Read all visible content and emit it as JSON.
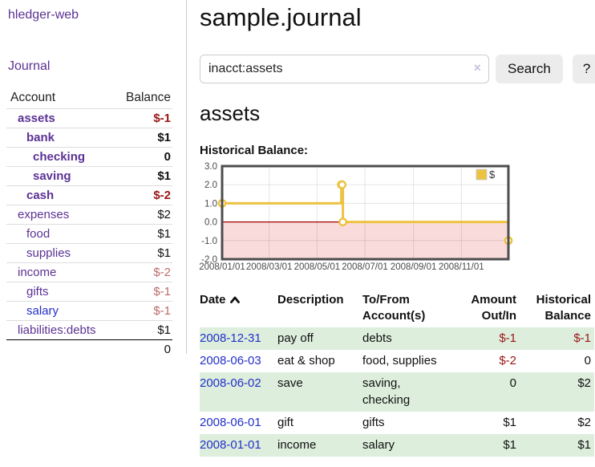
{
  "app": {
    "title": "hledger-web"
  },
  "sidebar": {
    "journal_link": "Journal",
    "accounts": {
      "headers": [
        "Account",
        "Balance"
      ],
      "rows": [
        {
          "account": "assets",
          "balance": "$-1",
          "indent": 1,
          "bold": true,
          "link": "purple",
          "tone": "neg"
        },
        {
          "account": "bank",
          "balance": "$1",
          "indent": 2,
          "bold": true,
          "link": "purple",
          "tone": "pos"
        },
        {
          "account": "checking",
          "balance": "0",
          "indent": 3,
          "bold": true,
          "link": "purple",
          "tone": "pos"
        },
        {
          "account": "saving",
          "balance": "$1",
          "indent": 3,
          "bold": true,
          "link": "purple",
          "tone": "pos"
        },
        {
          "account": "cash",
          "balance": "$-2",
          "indent": 2,
          "bold": true,
          "link": "purple",
          "tone": "neg"
        },
        {
          "account": "expenses",
          "balance": "$2",
          "indent": 1,
          "bold": false,
          "link": "purple",
          "tone": "pos"
        },
        {
          "account": "food",
          "balance": "$1",
          "indent": 2,
          "bold": false,
          "link": "purple",
          "tone": "pos"
        },
        {
          "account": "supplies",
          "balance": "$1",
          "indent": 2,
          "bold": false,
          "link": "purple",
          "tone": "pos"
        },
        {
          "account": "income",
          "balance": "$-2",
          "indent": 1,
          "bold": false,
          "link": "purple",
          "tone": "neg-soft"
        },
        {
          "account": "gifts",
          "balance": "$-1",
          "indent": 2,
          "bold": false,
          "link": "purple",
          "tone": "neg-soft"
        },
        {
          "account": "salary",
          "balance": "$-1",
          "indent": 2,
          "bold": false,
          "link": "blue",
          "tone": "neg-soft"
        },
        {
          "account": "liabilities:debts",
          "balance": "$1",
          "indent": 1,
          "bold": false,
          "link": "purple",
          "tone": "pos"
        }
      ],
      "total": "0"
    }
  },
  "main": {
    "title": "sample.journal",
    "search": {
      "value": "inacct:assets",
      "clear_icon": "×",
      "search_label": "Search",
      "help_label": "?"
    },
    "account_heading": "assets",
    "chart_heading": "Historical Balance:"
  },
  "chart_data": {
    "type": "line",
    "title": "Historical Balance:",
    "x_domain": [
      "2008-01-01",
      "2008-12-31"
    ],
    "ylim": [
      -2,
      3
    ],
    "yticks": [
      "3.0",
      "2.0",
      "1.0",
      "0.0",
      "-1.0",
      "-2.0"
    ],
    "xticks": [
      "2008/01/01",
      "2008/03/01",
      "2008/05/01",
      "2008/07/01",
      "2008/09/01",
      "2008/11/01"
    ],
    "series": [
      {
        "name": "$",
        "color": "#edc240",
        "step": true,
        "points": [
          {
            "date": "2008-01-01",
            "value": 1
          },
          {
            "date": "2008-06-01",
            "value": 2
          },
          {
            "date": "2008-06-02",
            "value": 2
          },
          {
            "date": "2008-06-03",
            "value": 0
          },
          {
            "date": "2008-12-31",
            "value": -1
          }
        ]
      }
    ],
    "legend": {
      "label": "$",
      "position": "top-right"
    },
    "grid": true,
    "zero_line_color": "#a40000",
    "negative_area_color": "#f9dbdb"
  },
  "register": {
    "headers": {
      "date": "Date",
      "description": "Description",
      "accounts": "To/From Account(s)",
      "amount": "Amount Out/In",
      "balance": "Historical Balance"
    },
    "rows": [
      {
        "date": "2008-12-31",
        "description": "pay off",
        "accounts": "debts",
        "amount": "$-1",
        "balance": "$-1",
        "amount_tone": "neg",
        "balance_tone": "neg"
      },
      {
        "date": "2008-06-03",
        "description": "eat & shop",
        "accounts": "food, supplies",
        "amount": "$-2",
        "balance": "0",
        "amount_tone": "neg",
        "balance_tone": "pos"
      },
      {
        "date": "2008-06-02",
        "description": "save",
        "accounts": "saving, checking",
        "amount": "0",
        "balance": "$2",
        "amount_tone": "pos",
        "balance_tone": "pos"
      },
      {
        "date": "2008-06-01",
        "description": "gift",
        "accounts": "gifts",
        "amount": "$1",
        "balance": "$2",
        "amount_tone": "pos",
        "balance_tone": "pos"
      },
      {
        "date": "2008-01-01",
        "description": "income",
        "accounts": "salary",
        "amount": "$1",
        "balance": "$1",
        "amount_tone": "pos",
        "balance_tone": "pos"
      }
    ]
  },
  "colors": {
    "link_purple": "#5b3294",
    "link_blue": "#2230c8",
    "negative_strong": "#9b1414",
    "negative_soft": "#bd6b6b",
    "row_stripe_green": "#ddeedd",
    "series_gold": "#edc240",
    "zero_line_red": "#a40000",
    "negative_area_pink": "#f9dbdb",
    "chart_border_gray": "#4d4d4d"
  }
}
